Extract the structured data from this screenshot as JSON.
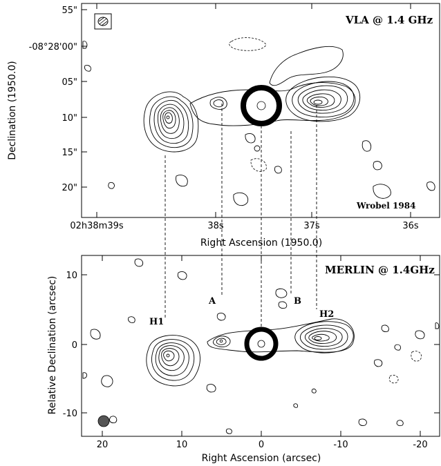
{
  "top_panel": {
    "label": "VLA @ 1.4 GHz",
    "credit": "Wrobel 1984",
    "y_axis_title": "Declination (1950.0)",
    "x_axis_title": "Right Ascension (1950.0)",
    "y_ticks": [
      "55\"",
      "-08°28'00\"",
      "05\"",
      "10\"",
      "15\"",
      "20\""
    ],
    "x_ticks": [
      "02h38m39s",
      "38s",
      "37s",
      "36s"
    ]
  },
  "bottom_panel": {
    "label": "MERLIN @ 1.4GHz",
    "y_axis_title": "Relative Declination (arcsec)",
    "x_axis_title": "Right Ascension (arcsec)",
    "y_ticks": [
      "10",
      "0",
      "-10"
    ],
    "x_ticks": [
      "20",
      "10",
      "0",
      "-10",
      "-20"
    ],
    "feature_labels": [
      "H1",
      "A",
      "B",
      "H2"
    ]
  }
}
